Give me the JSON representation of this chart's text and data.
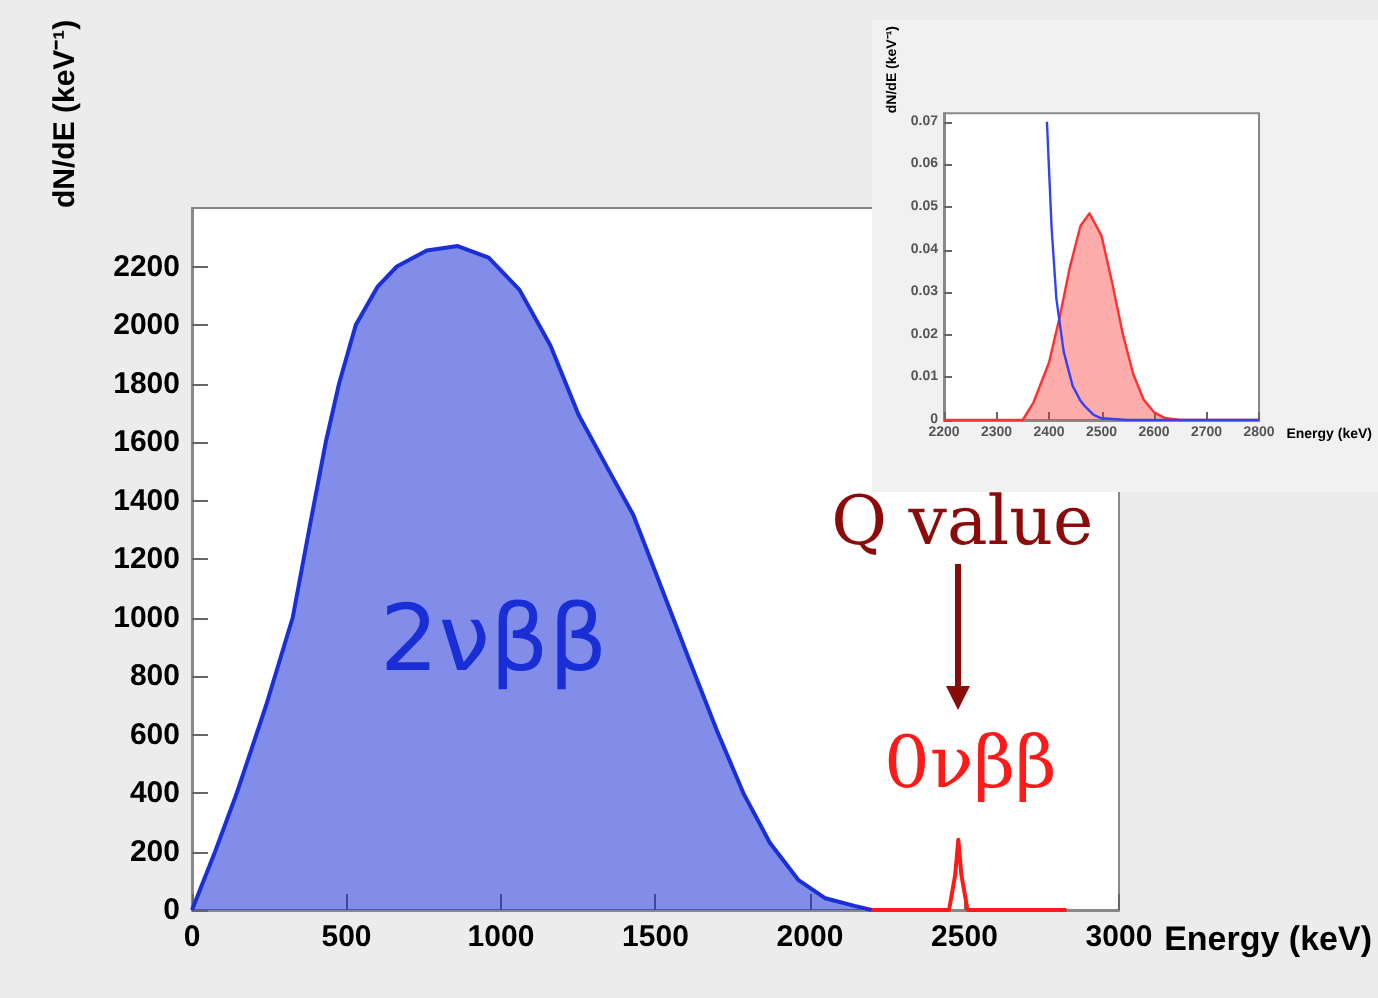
{
  "chart_data": [
    {
      "type": "area",
      "xlabel": "Energy (keV)",
      "ylabel": "dN/dE (keV⁻¹)",
      "xlim": [
        0,
        3000
      ],
      "ylim": [
        0,
        2400
      ],
      "xticks": [
        0,
        500,
        1000,
        1500,
        2000,
        2500,
        3000
      ],
      "yticks": [
        0,
        200,
        400,
        600,
        800,
        1000,
        1200,
        1400,
        1600,
        1800,
        2000,
        2200
      ],
      "grid": false,
      "legend": false,
      "marker": "none",
      "series": [
        {
          "name": "2νββ",
          "color": "#1a2fd6",
          "x": [
            0,
            75,
            145,
            240,
            326,
            379,
            433,
            476,
            530,
            600,
            663,
            760,
            860,
            960,
            1060,
            1160,
            1251,
            1340,
            1428,
            1520,
            1610,
            1700,
            1786,
            1870,
            1963,
            2050,
            2144,
            2200
          ],
          "values": [
            0,
            200,
            400,
            700,
            1000,
            1300,
            1600,
            1800,
            2000,
            2130,
            2200,
            2255,
            2270,
            2230,
            2120,
            1930,
            1693,
            1520,
            1351,
            1100,
            853,
            610,
            396,
            230,
            102,
            40,
            14,
            0
          ]
        },
        {
          "name": "0νββ",
          "type": "line",
          "color": "#ff1a1a",
          "x": [
            2200,
            2450,
            2470,
            2480,
            2490,
            2510,
            2830
          ],
          "values": [
            0,
            0,
            120,
            240,
            120,
            0,
            0
          ]
        }
      ],
      "annotations": [
        "Q value"
      ]
    },
    {
      "type": "area",
      "xlabel": "Energy (keV)",
      "ylabel": "dN/dE (keV⁻¹)",
      "xlim": [
        2200,
        2800
      ],
      "ylim": [
        0,
        0.072
      ],
      "xticks": [
        2200,
        2300,
        2400,
        2500,
        2600,
        2700,
        2800
      ],
      "yticks": [
        0,
        0.01,
        0.02,
        0.03,
        0.04,
        0.05,
        0.06,
        0.07
      ],
      "grid": false,
      "legend": false,
      "marker": "none",
      "series": [
        {
          "color": "#ff3030",
          "x": [
            2200,
            2350,
            2370,
            2400,
            2420,
            2440,
            2460,
            2477,
            2500,
            2520,
            2540,
            2560,
            2580,
            2600,
            2620,
            2650,
            2800
          ],
          "values": [
            0,
            0,
            0.004,
            0.0135,
            0.024,
            0.036,
            0.0456,
            0.0485,
            0.0432,
            0.0324,
            0.0205,
            0.0109,
            0.0048,
            0.0018,
            0.0005,
            0,
            0
          ]
        },
        {
          "type": "line",
          "color": "#3344ee",
          "x": [
            2396,
            2405,
            2414,
            2428,
            2445,
            2460,
            2470,
            2485,
            2500,
            2550,
            2800
          ],
          "values": [
            0.07,
            0.045,
            0.0285,
            0.016,
            0.008,
            0.0045,
            0.003,
            0.0012,
            0.0004,
            0,
            0
          ]
        }
      ]
    }
  ]
}
